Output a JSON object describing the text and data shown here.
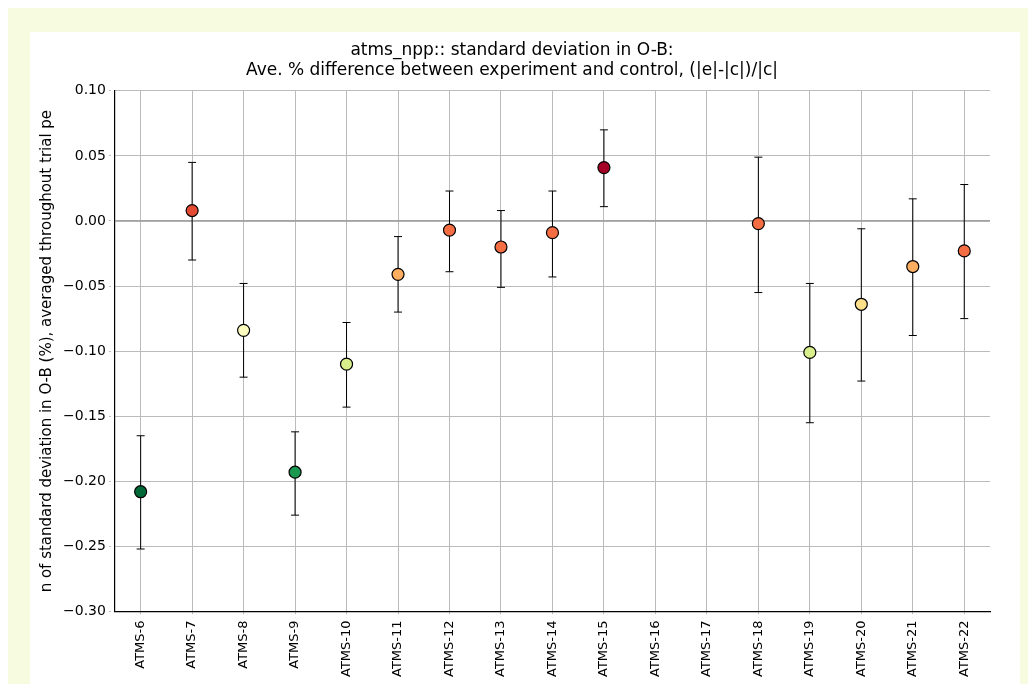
{
  "chart_data": {
    "type": "scatter",
    "title": "atms_npp:: standard deviation in O-B:\nAve. % difference between experiment and control, (|e|-|c|)/|c|",
    "ylabel": "n of standard deviation in O-B (%), averaged throughout trial pe",
    "categories": [
      "ATMS-6",
      "ATMS-7",
      "ATMS-8",
      "ATMS-9",
      "ATMS-10",
      "ATMS-11",
      "ATMS-12",
      "ATMS-13",
      "ATMS-14",
      "ATMS-15",
      "ATMS-16",
      "ATMS-17",
      "ATMS-18",
      "ATMS-19",
      "ATMS-20",
      "ATMS-21",
      "ATMS-22"
    ],
    "values": [
      -0.208,
      0.008,
      -0.084,
      -0.193,
      -0.11,
      -0.041,
      -0.007,
      -0.02,
      -0.009,
      0.041,
      null,
      null,
      -0.002,
      -0.101,
      -0.064,
      -0.035,
      -0.023
    ],
    "errors": [
      [
        -0.252,
        -0.165
      ],
      [
        -0.03,
        0.045
      ],
      [
        -0.12,
        -0.048
      ],
      [
        -0.226,
        -0.162
      ],
      [
        -0.143,
        -0.078
      ],
      [
        -0.07,
        -0.012
      ],
      [
        -0.039,
        0.023
      ],
      [
        -0.051,
        0.008
      ],
      [
        -0.043,
        0.023
      ],
      [
        0.011,
        0.07
      ],
      null,
      null,
      [
        -0.055,
        0.049
      ],
      [
        -0.155,
        -0.048
      ],
      [
        -0.123,
        -0.006
      ],
      [
        -0.088,
        0.017
      ],
      [
        -0.075,
        0.028
      ]
    ],
    "colors": [
      "#006837",
      "#e34a33",
      "#ffffbf",
      "#1a9850",
      "#d9ef8b",
      "#fdae61",
      "#f46d43",
      "#f46d43",
      "#f46d43",
      "#a50026",
      "#ffffff",
      "#ffffff",
      "#f46d43",
      "#d9ef8b",
      "#fee08b",
      "#fdae61",
      "#f46d43"
    ],
    "marker": "circle",
    "ylim": [
      -0.3,
      0.1
    ],
    "yticks": [
      {
        "value": -0.3,
        "label": "−0.30"
      },
      {
        "value": -0.25,
        "label": "−0.25"
      },
      {
        "value": -0.2,
        "label": "−0.20"
      },
      {
        "value": -0.15,
        "label": "−0.15"
      },
      {
        "value": -0.1,
        "label": "−0.10"
      },
      {
        "value": -0.05,
        "label": "−0.05"
      },
      {
        "value": 0,
        "label": "0.00"
      },
      {
        "value": 0.05,
        "label": "0.05"
      },
      {
        "value": 0.1,
        "label": "0.10"
      }
    ],
    "ref_lines": [
      {
        "axis": "y",
        "value": 0,
        "color": "#999999"
      }
    ],
    "grid": true
  }
}
